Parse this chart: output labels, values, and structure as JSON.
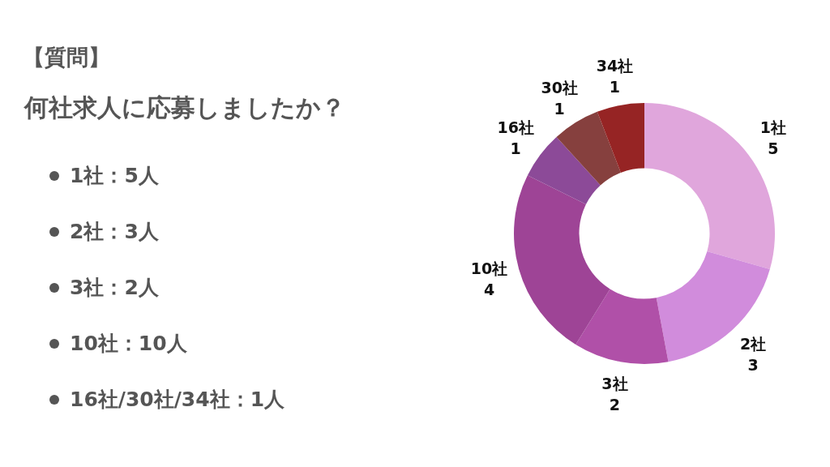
{
  "chart_data": {
    "type": "donut",
    "title": "【質問】",
    "subtitle": "何社求人に応募しましたか？",
    "annotations": [
      "1社：5人",
      "2社：3人",
      "3社：2人",
      "10社：10人",
      "16社/30社/34社：1人"
    ],
    "categories": [
      "1社",
      "2社",
      "3社",
      "10社",
      "16社",
      "30社",
      "34社"
    ],
    "values": [
      5,
      3,
      2,
      4,
      1,
      1,
      1
    ],
    "colors": [
      "#e0a6dc",
      "#d18cdc",
      "#b050a8",
      "#9e4496",
      "#8c4a98",
      "#86403e",
      "#962424"
    ],
    "data_labels": true
  }
}
